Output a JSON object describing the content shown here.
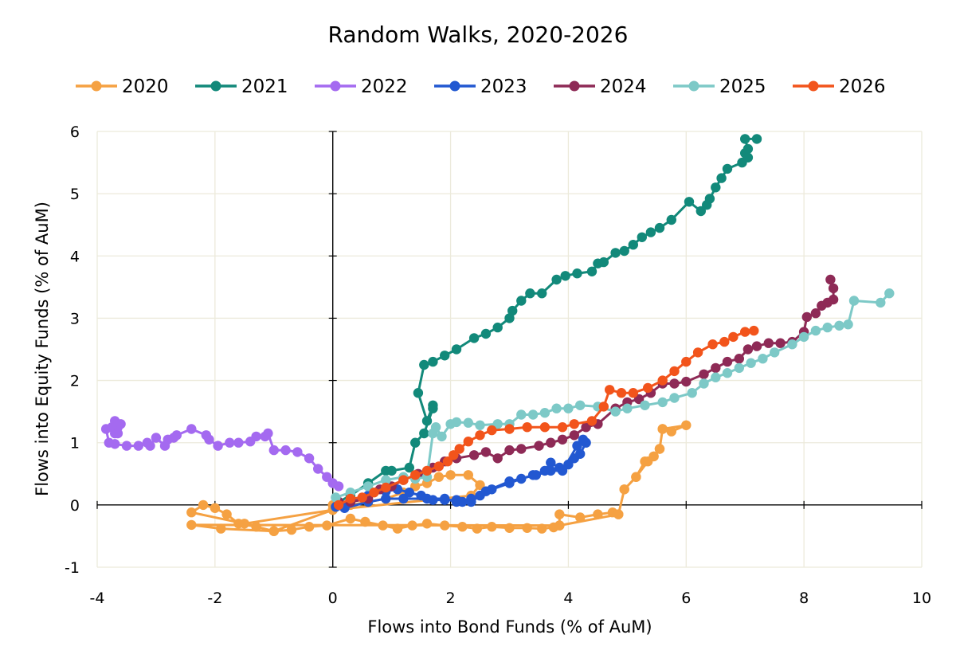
{
  "chart_data": {
    "type": "scatter",
    "title": "Random Walks, 2020-2026",
    "xlabel": "Flows into Bond Funds (% of AuM)",
    "ylabel": "Flows into Equity Funds (% of AuM)",
    "xlim": [
      -4,
      10
    ],
    "ylim": [
      -1,
      6
    ],
    "xticks": [
      "-4",
      "-2",
      "0",
      "2",
      "4",
      "6",
      "8",
      "10"
    ],
    "yticks": [
      "-1",
      "0",
      "1",
      "2",
      "3",
      "4",
      "5",
      "6"
    ],
    "grid": true,
    "legend": "top",
    "series": [
      {
        "name": "2020",
        "color": "#F5A142",
        "points": [
          [
            0.0,
            0.0
          ],
          [
            0.3,
            0.0
          ],
          [
            0.6,
            0.05
          ],
          [
            0.9,
            0.1
          ],
          [
            1.2,
            0.2
          ],
          [
            1.4,
            0.3
          ],
          [
            1.6,
            0.35
          ],
          [
            1.8,
            0.45
          ],
          [
            2.0,
            0.48
          ],
          [
            2.3,
            0.48
          ],
          [
            2.5,
            0.32
          ],
          [
            2.35,
            0.15
          ],
          [
            0.0,
            -0.08
          ],
          [
            -1.5,
            -0.3
          ],
          [
            -2.4,
            -0.12
          ],
          [
            -2.2,
            0.0
          ],
          [
            -2.0,
            -0.05
          ],
          [
            -1.8,
            -0.15
          ],
          [
            -1.6,
            -0.3
          ],
          [
            -1.3,
            -0.35
          ],
          [
            -1.0,
            -0.42
          ],
          [
            -0.7,
            -0.4
          ],
          [
            -0.4,
            -0.35
          ],
          [
            -0.1,
            -0.33
          ],
          [
            0.3,
            -0.22
          ],
          [
            0.55,
            -0.27
          ],
          [
            0.85,
            -0.33
          ],
          [
            1.1,
            -0.38
          ],
          [
            1.35,
            -0.33
          ],
          [
            1.6,
            -0.3
          ],
          [
            1.9,
            -0.33
          ],
          [
            2.2,
            -0.35
          ],
          [
            2.45,
            -0.38
          ],
          [
            2.7,
            -0.35
          ],
          [
            3.0,
            -0.37
          ],
          [
            3.3,
            -0.37
          ],
          [
            3.55,
            -0.38
          ],
          [
            3.75,
            -0.36
          ],
          [
            3.85,
            -0.33
          ],
          [
            3.85,
            -0.15
          ],
          [
            4.2,
            -0.2
          ],
          [
            4.5,
            -0.15
          ],
          [
            4.75,
            -0.12
          ],
          [
            4.85,
            -0.15
          ],
          [
            4.95,
            0.25
          ],
          [
            5.15,
            0.45
          ],
          [
            5.3,
            0.7
          ],
          [
            5.45,
            0.78
          ],
          [
            5.55,
            0.9
          ],
          [
            5.6,
            1.22
          ],
          [
            5.75,
            1.18
          ],
          [
            6.0,
            1.28
          ],
          [
            5.6,
            1.22
          ],
          [
            5.55,
            0.9
          ],
          [
            5.45,
            0.78
          ],
          [
            5.35,
            0.7
          ],
          [
            5.15,
            0.45
          ],
          [
            4.95,
            0.25
          ],
          [
            4.85,
            -0.15
          ],
          [
            3.85,
            -0.33
          ],
          [
            -2.4,
            -0.32
          ],
          [
            -1.9,
            -0.38
          ],
          [
            -1.0,
            -0.42
          ],
          [
            0.0,
            -0.08
          ]
        ]
      },
      {
        "name": "2021",
        "color": "#12897A",
        "points": [
          [
            0.1,
            0.05
          ],
          [
            0.3,
            0.15
          ],
          [
            0.6,
            0.35
          ],
          [
            0.9,
            0.55
          ],
          [
            1.0,
            0.55
          ],
          [
            1.3,
            0.6
          ],
          [
            1.4,
            1.0
          ],
          [
            1.55,
            1.15
          ],
          [
            1.7,
            1.55
          ],
          [
            1.7,
            1.6
          ],
          [
            1.6,
            1.35
          ],
          [
            1.45,
            1.8
          ],
          [
            1.55,
            2.25
          ],
          [
            1.7,
            2.3
          ],
          [
            1.9,
            2.4
          ],
          [
            2.1,
            2.5
          ],
          [
            2.4,
            2.68
          ],
          [
            2.6,
            2.75
          ],
          [
            2.8,
            2.85
          ],
          [
            3.0,
            3.0
          ],
          [
            3.05,
            3.12
          ],
          [
            3.2,
            3.28
          ],
          [
            3.35,
            3.4
          ],
          [
            3.55,
            3.4
          ],
          [
            3.8,
            3.62
          ],
          [
            3.95,
            3.68
          ],
          [
            4.15,
            3.72
          ],
          [
            4.4,
            3.75
          ],
          [
            4.5,
            3.88
          ],
          [
            4.6,
            3.9
          ],
          [
            4.8,
            4.05
          ],
          [
            4.95,
            4.08
          ],
          [
            5.1,
            4.18
          ],
          [
            5.25,
            4.3
          ],
          [
            5.4,
            4.38
          ],
          [
            5.55,
            4.45
          ],
          [
            5.75,
            4.58
          ],
          [
            6.05,
            4.87
          ],
          [
            6.25,
            4.72
          ],
          [
            6.35,
            4.82
          ],
          [
            6.4,
            4.92
          ],
          [
            6.5,
            5.1
          ],
          [
            6.6,
            5.25
          ],
          [
            6.7,
            5.4
          ],
          [
            6.95,
            5.5
          ],
          [
            7.0,
            5.65
          ],
          [
            7.05,
            5.58
          ],
          [
            7.05,
            5.72
          ],
          [
            7.0,
            5.88
          ],
          [
            7.2,
            5.88
          ]
        ]
      },
      {
        "name": "2022",
        "color": "#A46AF0",
        "points": [
          [
            0.1,
            0.3
          ],
          [
            0.0,
            0.35
          ],
          [
            -0.1,
            0.45
          ],
          [
            -0.25,
            0.58
          ],
          [
            -0.4,
            0.75
          ],
          [
            -0.6,
            0.85
          ],
          [
            -0.8,
            0.88
          ],
          [
            -1.0,
            0.88
          ],
          [
            -1.1,
            1.15
          ],
          [
            -1.15,
            1.1
          ],
          [
            -1.3,
            1.1
          ],
          [
            -1.4,
            1.02
          ],
          [
            -1.6,
            1.0
          ],
          [
            -1.75,
            1.0
          ],
          [
            -1.95,
            0.95
          ],
          [
            -2.1,
            1.05
          ],
          [
            -2.15,
            1.12
          ],
          [
            -2.4,
            1.22
          ],
          [
            -2.65,
            1.12
          ],
          [
            -2.7,
            1.08
          ],
          [
            -2.8,
            1.05
          ],
          [
            -2.85,
            0.95
          ],
          [
            -3.0,
            1.08
          ],
          [
            -3.1,
            0.95
          ],
          [
            -3.15,
            1.0
          ],
          [
            -3.3,
            0.95
          ],
          [
            -3.5,
            0.95
          ],
          [
            -3.7,
            0.98
          ],
          [
            -3.8,
            1.0
          ],
          [
            -3.85,
            1.22
          ],
          [
            -3.7,
            1.35
          ],
          [
            -3.65,
            1.25
          ],
          [
            -3.7,
            1.15
          ],
          [
            -3.75,
            1.25
          ],
          [
            -3.6,
            1.3
          ],
          [
            -3.65,
            1.15
          ]
        ]
      },
      {
        "name": "2023",
        "color": "#2258D1",
        "points": [
          [
            0.05,
            -0.03
          ],
          [
            0.3,
            0.05
          ],
          [
            0.6,
            0.15
          ],
          [
            0.9,
            0.22
          ],
          [
            1.1,
            0.25
          ],
          [
            1.3,
            0.2
          ],
          [
            1.5,
            0.15
          ],
          [
            1.7,
            0.08
          ],
          [
            1.9,
            0.08
          ],
          [
            2.1,
            0.08
          ],
          [
            2.2,
            0.05
          ],
          [
            2.35,
            0.05
          ],
          [
            2.5,
            0.15
          ],
          [
            2.7,
            0.25
          ],
          [
            3.0,
            0.35
          ],
          [
            3.2,
            0.42
          ],
          [
            3.4,
            0.48
          ],
          [
            3.6,
            0.55
          ],
          [
            3.7,
            0.68
          ],
          [
            3.85,
            0.6
          ],
          [
            4.0,
            0.65
          ],
          [
            4.1,
            0.75
          ],
          [
            4.2,
            0.82
          ],
          [
            4.3,
            1.0
          ],
          [
            4.25,
            1.05
          ],
          [
            4.15,
            0.95
          ],
          [
            3.9,
            0.55
          ],
          [
            3.7,
            0.55
          ],
          [
            3.45,
            0.48
          ],
          [
            3.0,
            0.38
          ],
          [
            2.6,
            0.22
          ],
          [
            2.35,
            0.1
          ],
          [
            2.1,
            0.05
          ],
          [
            1.9,
            0.1
          ],
          [
            1.6,
            0.1
          ],
          [
            1.2,
            0.1
          ],
          [
            0.9,
            0.1
          ],
          [
            0.6,
            0.05
          ],
          [
            0.2,
            -0.05
          ]
        ]
      },
      {
        "name": "2024",
        "color": "#8E2A56",
        "points": [
          [
            0.1,
            0.05
          ],
          [
            0.3,
            0.05
          ],
          [
            0.6,
            0.1
          ],
          [
            0.8,
            0.25
          ],
          [
            1.0,
            0.3
          ],
          [
            1.2,
            0.4
          ],
          [
            1.45,
            0.5
          ],
          [
            1.7,
            0.6
          ],
          [
            1.9,
            0.7
          ],
          [
            2.1,
            0.75
          ],
          [
            2.4,
            0.8
          ],
          [
            2.6,
            0.85
          ],
          [
            2.8,
            0.75
          ],
          [
            3.0,
            0.88
          ],
          [
            3.2,
            0.9
          ],
          [
            3.5,
            0.95
          ],
          [
            3.7,
            1.0
          ],
          [
            3.9,
            1.05
          ],
          [
            4.1,
            1.12
          ],
          [
            4.3,
            1.25
          ],
          [
            4.5,
            1.3
          ],
          [
            4.8,
            1.55
          ],
          [
            5.0,
            1.65
          ],
          [
            5.2,
            1.7
          ],
          [
            5.4,
            1.8
          ],
          [
            5.6,
            1.95
          ],
          [
            5.8,
            1.95
          ],
          [
            6.0,
            1.98
          ],
          [
            6.3,
            2.1
          ],
          [
            6.5,
            2.2
          ],
          [
            6.7,
            2.3
          ],
          [
            6.9,
            2.35
          ],
          [
            7.05,
            2.5
          ],
          [
            7.2,
            2.55
          ],
          [
            7.4,
            2.6
          ],
          [
            7.6,
            2.6
          ],
          [
            7.8,
            2.62
          ],
          [
            8.0,
            2.78
          ],
          [
            8.05,
            3.02
          ],
          [
            8.2,
            3.08
          ],
          [
            8.3,
            3.2
          ],
          [
            8.4,
            3.25
          ],
          [
            8.5,
            3.3
          ],
          [
            8.5,
            3.48
          ],
          [
            8.45,
            3.62
          ]
        ]
      },
      {
        "name": "2025",
        "color": "#7DC9C7",
        "points": [
          [
            0.05,
            0.12
          ],
          [
            0.3,
            0.2
          ],
          [
            0.6,
            0.3
          ],
          [
            0.9,
            0.4
          ],
          [
            1.2,
            0.45
          ],
          [
            1.4,
            0.42
          ],
          [
            1.6,
            0.45
          ],
          [
            1.7,
            1.15
          ],
          [
            1.75,
            1.25
          ],
          [
            1.85,
            1.1
          ],
          [
            2.0,
            1.3
          ],
          [
            2.1,
            1.33
          ],
          [
            2.3,
            1.32
          ],
          [
            2.5,
            1.28
          ],
          [
            2.8,
            1.3
          ],
          [
            3.0,
            1.3
          ],
          [
            3.2,
            1.45
          ],
          [
            3.4,
            1.45
          ],
          [
            3.6,
            1.48
          ],
          [
            3.8,
            1.55
          ],
          [
            4.0,
            1.55
          ],
          [
            4.2,
            1.6
          ],
          [
            4.5,
            1.58
          ],
          [
            4.8,
            1.5
          ],
          [
            5.0,
            1.55
          ],
          [
            5.3,
            1.6
          ],
          [
            5.6,
            1.65
          ],
          [
            5.8,
            1.72
          ],
          [
            6.1,
            1.8
          ],
          [
            6.3,
            1.95
          ],
          [
            6.5,
            2.05
          ],
          [
            6.7,
            2.12
          ],
          [
            6.9,
            2.2
          ],
          [
            7.1,
            2.28
          ],
          [
            7.3,
            2.35
          ],
          [
            7.5,
            2.45
          ],
          [
            7.8,
            2.58
          ],
          [
            8.0,
            2.7
          ],
          [
            8.2,
            2.8
          ],
          [
            8.4,
            2.85
          ],
          [
            8.6,
            2.88
          ],
          [
            8.75,
            2.9
          ],
          [
            8.85,
            3.28
          ],
          [
            9.3,
            3.25
          ],
          [
            9.45,
            3.4
          ]
        ]
      },
      {
        "name": "2026",
        "color": "#F2541B",
        "points": [
          [
            0.1,
            0.0
          ],
          [
            0.3,
            0.1
          ],
          [
            0.5,
            0.12
          ],
          [
            0.7,
            0.2
          ],
          [
            0.9,
            0.28
          ],
          [
            1.2,
            0.4
          ],
          [
            1.4,
            0.48
          ],
          [
            1.6,
            0.55
          ],
          [
            1.8,
            0.62
          ],
          [
            1.95,
            0.7
          ],
          [
            2.05,
            0.8
          ],
          [
            2.15,
            0.9
          ],
          [
            2.3,
            1.02
          ],
          [
            2.5,
            1.12
          ],
          [
            2.7,
            1.2
          ],
          [
            3.0,
            1.22
          ],
          [
            3.3,
            1.25
          ],
          [
            3.6,
            1.25
          ],
          [
            3.9,
            1.25
          ],
          [
            4.1,
            1.3
          ],
          [
            4.4,
            1.35
          ],
          [
            4.6,
            1.58
          ],
          [
            4.7,
            1.85
          ],
          [
            4.9,
            1.8
          ],
          [
            5.1,
            1.8
          ],
          [
            5.35,
            1.88
          ],
          [
            5.6,
            2.0
          ],
          [
            5.8,
            2.15
          ],
          [
            6.0,
            2.3
          ],
          [
            6.2,
            2.45
          ],
          [
            6.45,
            2.58
          ],
          [
            6.65,
            2.62
          ],
          [
            6.8,
            2.7
          ],
          [
            7.0,
            2.78
          ],
          [
            7.15,
            2.8
          ]
        ]
      }
    ]
  }
}
